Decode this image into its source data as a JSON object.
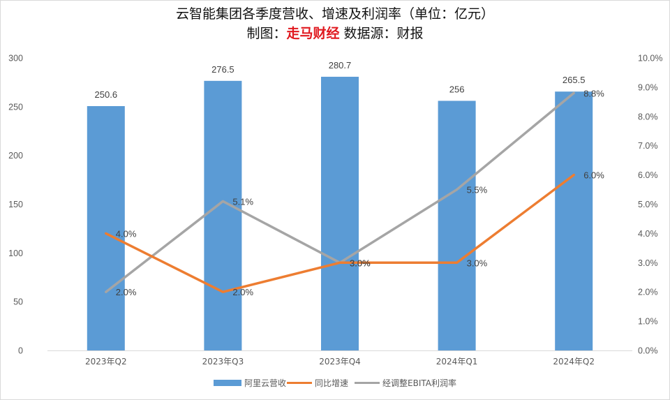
{
  "chart_data": {
    "type": "bar",
    "title": "云智能集团各季度营收、增速及利润率（单位：亿元）",
    "subtitle": {
      "prefix": "制图：",
      "highlight": "走马财经",
      "suffix": " 数据源：财报"
    },
    "categories": [
      "2023年Q2",
      "2023年Q3",
      "2023年Q4",
      "2024年Q1",
      "2024年Q2"
    ],
    "series": [
      {
        "name": "阿里云营收",
        "type": "bar",
        "axis": "left",
        "color": "#5b9bd5",
        "values": [
          250.6,
          276.5,
          280.7,
          256,
          265.5
        ],
        "labels": [
          "250.6",
          "276.5",
          "280.7",
          "256",
          "265.5"
        ]
      },
      {
        "name": "同比增速",
        "type": "line",
        "axis": "right",
        "color": "#ed7d31",
        "values": [
          4.0,
          2.0,
          3.0,
          3.0,
          6.0
        ],
        "labels": [
          "4.0%",
          "2.0%",
          "3.0%",
          "3.0%",
          "6.0%"
        ]
      },
      {
        "name": "经调整EBITA利润率",
        "type": "line",
        "axis": "right",
        "color": "#a5a5a5",
        "values": [
          2.0,
          5.1,
          3.0,
          5.5,
          8.8
        ],
        "labels": [
          "2.0%",
          "5.1%",
          "3.0%",
          "5.5%",
          "8.8%"
        ]
      }
    ],
    "y_left": {
      "min": 0,
      "max": 300,
      "step": 50,
      "ticks": [
        "0",
        "50",
        "100",
        "150",
        "200",
        "250",
        "300"
      ]
    },
    "y_right": {
      "min": 0,
      "max": 10,
      "step": 1,
      "ticks": [
        "0.0%",
        "1.0%",
        "2.0%",
        "3.0%",
        "4.0%",
        "5.0%",
        "6.0%",
        "7.0%",
        "8.0%",
        "9.0%",
        "10.0%"
      ]
    },
    "grid": false,
    "legend_position": "bottom"
  }
}
